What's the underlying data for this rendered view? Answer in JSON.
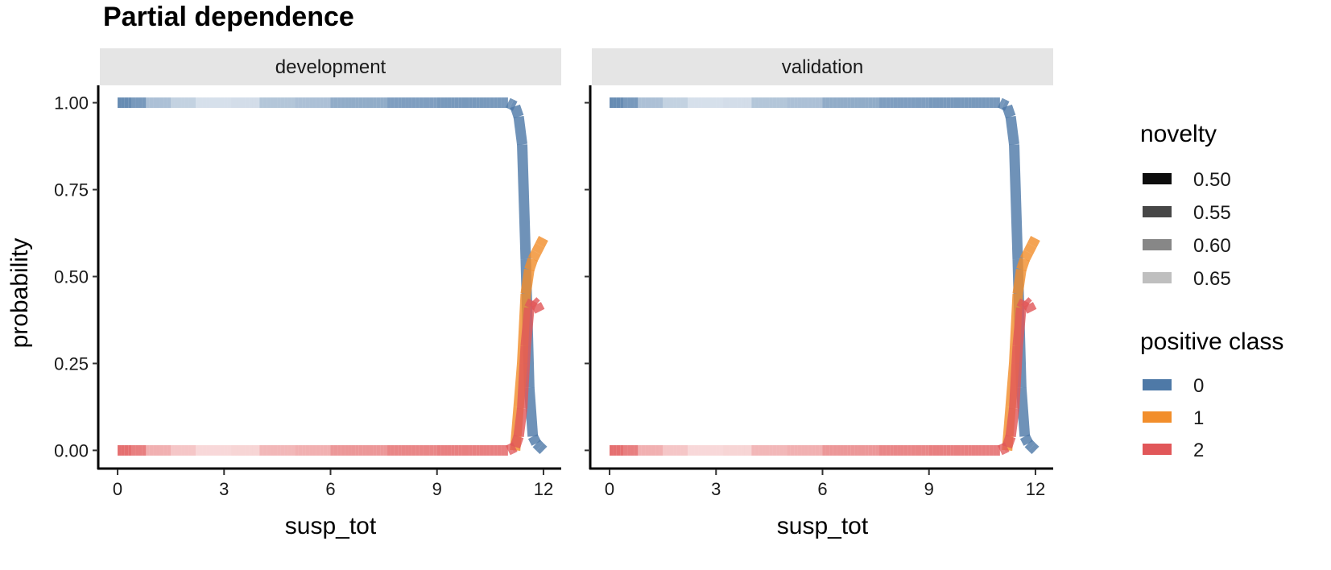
{
  "chart_data": {
    "type": "line",
    "title": "Partial dependence",
    "xlabel": "susp_tot",
    "ylabel": "probability",
    "xlim": [
      -0.5,
      12.5
    ],
    "ylim": [
      -0.05,
      1.05
    ],
    "x_ticks": [
      0,
      3,
      6,
      9,
      12
    ],
    "y_ticks": [
      0.0,
      0.25,
      0.5,
      0.75,
      1.0
    ],
    "x_tick_labels": [
      "0",
      "3",
      "6",
      "9",
      "12"
    ],
    "y_tick_labels": [
      "0.00",
      "0.25",
      "0.50",
      "0.75",
      "1.00"
    ],
    "grid": false,
    "legend_position": "right",
    "panels": [
      "development",
      "validation"
    ],
    "novelty_legend": {
      "title": "novelty",
      "entries": [
        {
          "label": "0.50",
          "alpha": 0.95
        },
        {
          "label": "0.55",
          "alpha": 0.72
        },
        {
          "label": "0.60",
          "alpha": 0.47
        },
        {
          "label": "0.65",
          "alpha": 0.25
        }
      ]
    },
    "class_legend": {
      "title": "positive class",
      "entries": [
        {
          "label": "0",
          "color": "#4E79A7"
        },
        {
          "label": "1",
          "color": "#F28E2B"
        },
        {
          "label": "2",
          "color": "#E15759"
        }
      ]
    },
    "novelty_by_x": [
      {
        "x_from": 0.0,
        "x_to": 0.4,
        "novelty": 0.52
      },
      {
        "x_from": 0.4,
        "x_to": 0.8,
        "novelty": 0.54
      },
      {
        "x_from": 0.8,
        "x_to": 1.5,
        "novelty": 0.6
      },
      {
        "x_from": 1.5,
        "x_to": 2.2,
        "novelty": 0.63
      },
      {
        "x_from": 2.2,
        "x_to": 3.2,
        "novelty": 0.66
      },
      {
        "x_from": 3.2,
        "x_to": 4.0,
        "novelty": 0.65
      },
      {
        "x_from": 4.0,
        "x_to": 5.0,
        "novelty": 0.61
      },
      {
        "x_from": 5.0,
        "x_to": 6.0,
        "novelty": 0.6
      },
      {
        "x_from": 6.0,
        "x_to": 7.6,
        "novelty": 0.57
      },
      {
        "x_from": 7.6,
        "x_to": 9.0,
        "novelty": 0.55
      },
      {
        "x_from": 9.0,
        "x_to": 11.1,
        "novelty": 0.54
      },
      {
        "x_from": 11.1,
        "x_to": 12.0,
        "novelty": 0.53
      }
    ],
    "series": [
      {
        "name": "0",
        "color": "#4E79A7",
        "x": [
          0,
          11.0,
          11.2,
          11.3,
          11.4,
          11.5,
          11.6,
          11.7,
          11.8,
          11.9,
          12.0
        ],
        "y": [
          1.0,
          1.0,
          0.99,
          0.96,
          0.88,
          0.55,
          0.18,
          0.04,
          0.02,
          0.01,
          0.0
        ]
      },
      {
        "name": "1",
        "color": "#F28E2B",
        "x": [
          11.2,
          11.4,
          11.5,
          11.6,
          11.7,
          11.8,
          11.9,
          12.0
        ],
        "y": [
          0.0,
          0.25,
          0.45,
          0.52,
          0.55,
          0.57,
          0.59,
          0.61
        ]
      },
      {
        "name": "2",
        "color": "#E15759",
        "x": [
          0,
          11.0,
          11.2,
          11.3,
          11.4,
          11.5,
          11.6,
          11.7,
          11.8,
          11.9
        ],
        "y": [
          0.0,
          0.0,
          0.01,
          0.04,
          0.12,
          0.3,
          0.41,
          0.43,
          0.42,
          0.4
        ]
      }
    ]
  }
}
